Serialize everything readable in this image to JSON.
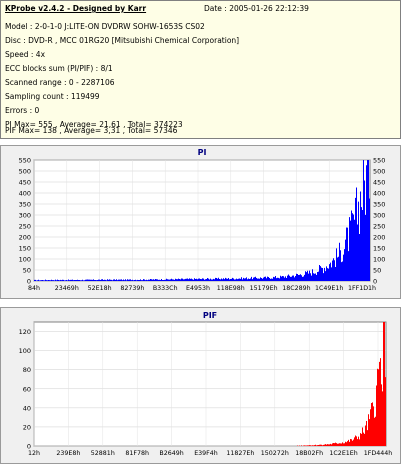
{
  "header": {
    "app": "KProbe v2.4.2 - Designed by Karr",
    "date": "Date : 2005-01-26 22:12:39",
    "lines": [
      "Model : 2-0-1-0 J:LITE-ON DVDRW SOHW-1653S CS02",
      "Disc : DVD-R , MCC 01RG20   [Mitsubishi Chemical Corporation]",
      "Speed : 4x",
      "ECC blocks sum (PI/PIF) : 8/1",
      "Scanned range : 0 - 2287106",
      "Sampling count : 119499",
      "Errors : 0",
      "PI Max= 555 , Average= 21,61 , Total= 374223",
      "PIF Max= 138 , Average= 3,31 , Total= 57346"
    ]
  },
  "chart_data": [
    {
      "type": "bar",
      "title": "PI",
      "color": "#0000ff",
      "ylim": [
        0,
        550
      ],
      "yticks": [
        0,
        50,
        100,
        150,
        200,
        250,
        300,
        350,
        400,
        450,
        500,
        550
      ],
      "xticks": [
        "84h",
        "23469h",
        "52E18h",
        "82739h",
        "B333Ch",
        "E4953h",
        "118E98h",
        "15179Eh",
        "18C289h",
        "1C49E1h",
        "1FF1D1h"
      ],
      "x": [
        0.0,
        0.05,
        0.1,
        0.15,
        0.2,
        0.25,
        0.3,
        0.35,
        0.4,
        0.45,
        0.5,
        0.55,
        0.6,
        0.65,
        0.7,
        0.72,
        0.74,
        0.76,
        0.78,
        0.8,
        0.82,
        0.84,
        0.86,
        0.88,
        0.9,
        0.92,
        0.94,
        0.95,
        0.96,
        0.97,
        0.98,
        0.99,
        1.0
      ],
      "values": [
        4,
        5,
        5,
        5,
        6,
        6,
        6,
        7,
        8,
        9,
        10,
        11,
        12,
        14,
        16,
        18,
        20,
        24,
        28,
        33,
        40,
        50,
        65,
        85,
        115,
        160,
        230,
        275,
        330,
        400,
        450,
        510,
        540
      ]
    },
    {
      "type": "bar",
      "title": "PIF",
      "color": "#ff0000",
      "ylim": [
        0,
        130
      ],
      "yticks": [
        0,
        20,
        40,
        60,
        80,
        100,
        120
      ],
      "xticks": [
        "12h",
        "239E8h",
        "52881h",
        "81F78h",
        "B2649h",
        "E39F4h",
        "11827Eh",
        "150272h",
        "18B02Fh",
        "1C2E1Eh",
        "1FD444h"
      ],
      "x": [
        0.0,
        0.1,
        0.2,
        0.3,
        0.4,
        0.5,
        0.6,
        0.7,
        0.8,
        0.84,
        0.86,
        0.88,
        0.9,
        0.92,
        0.94,
        0.95,
        0.96,
        0.97,
        0.98,
        0.99,
        1.0
      ],
      "values": [
        0,
        0,
        0,
        0,
        0,
        0,
        0,
        0,
        1,
        2,
        3,
        4,
        6,
        10,
        18,
        26,
        38,
        55,
        80,
        105,
        125
      ]
    }
  ]
}
